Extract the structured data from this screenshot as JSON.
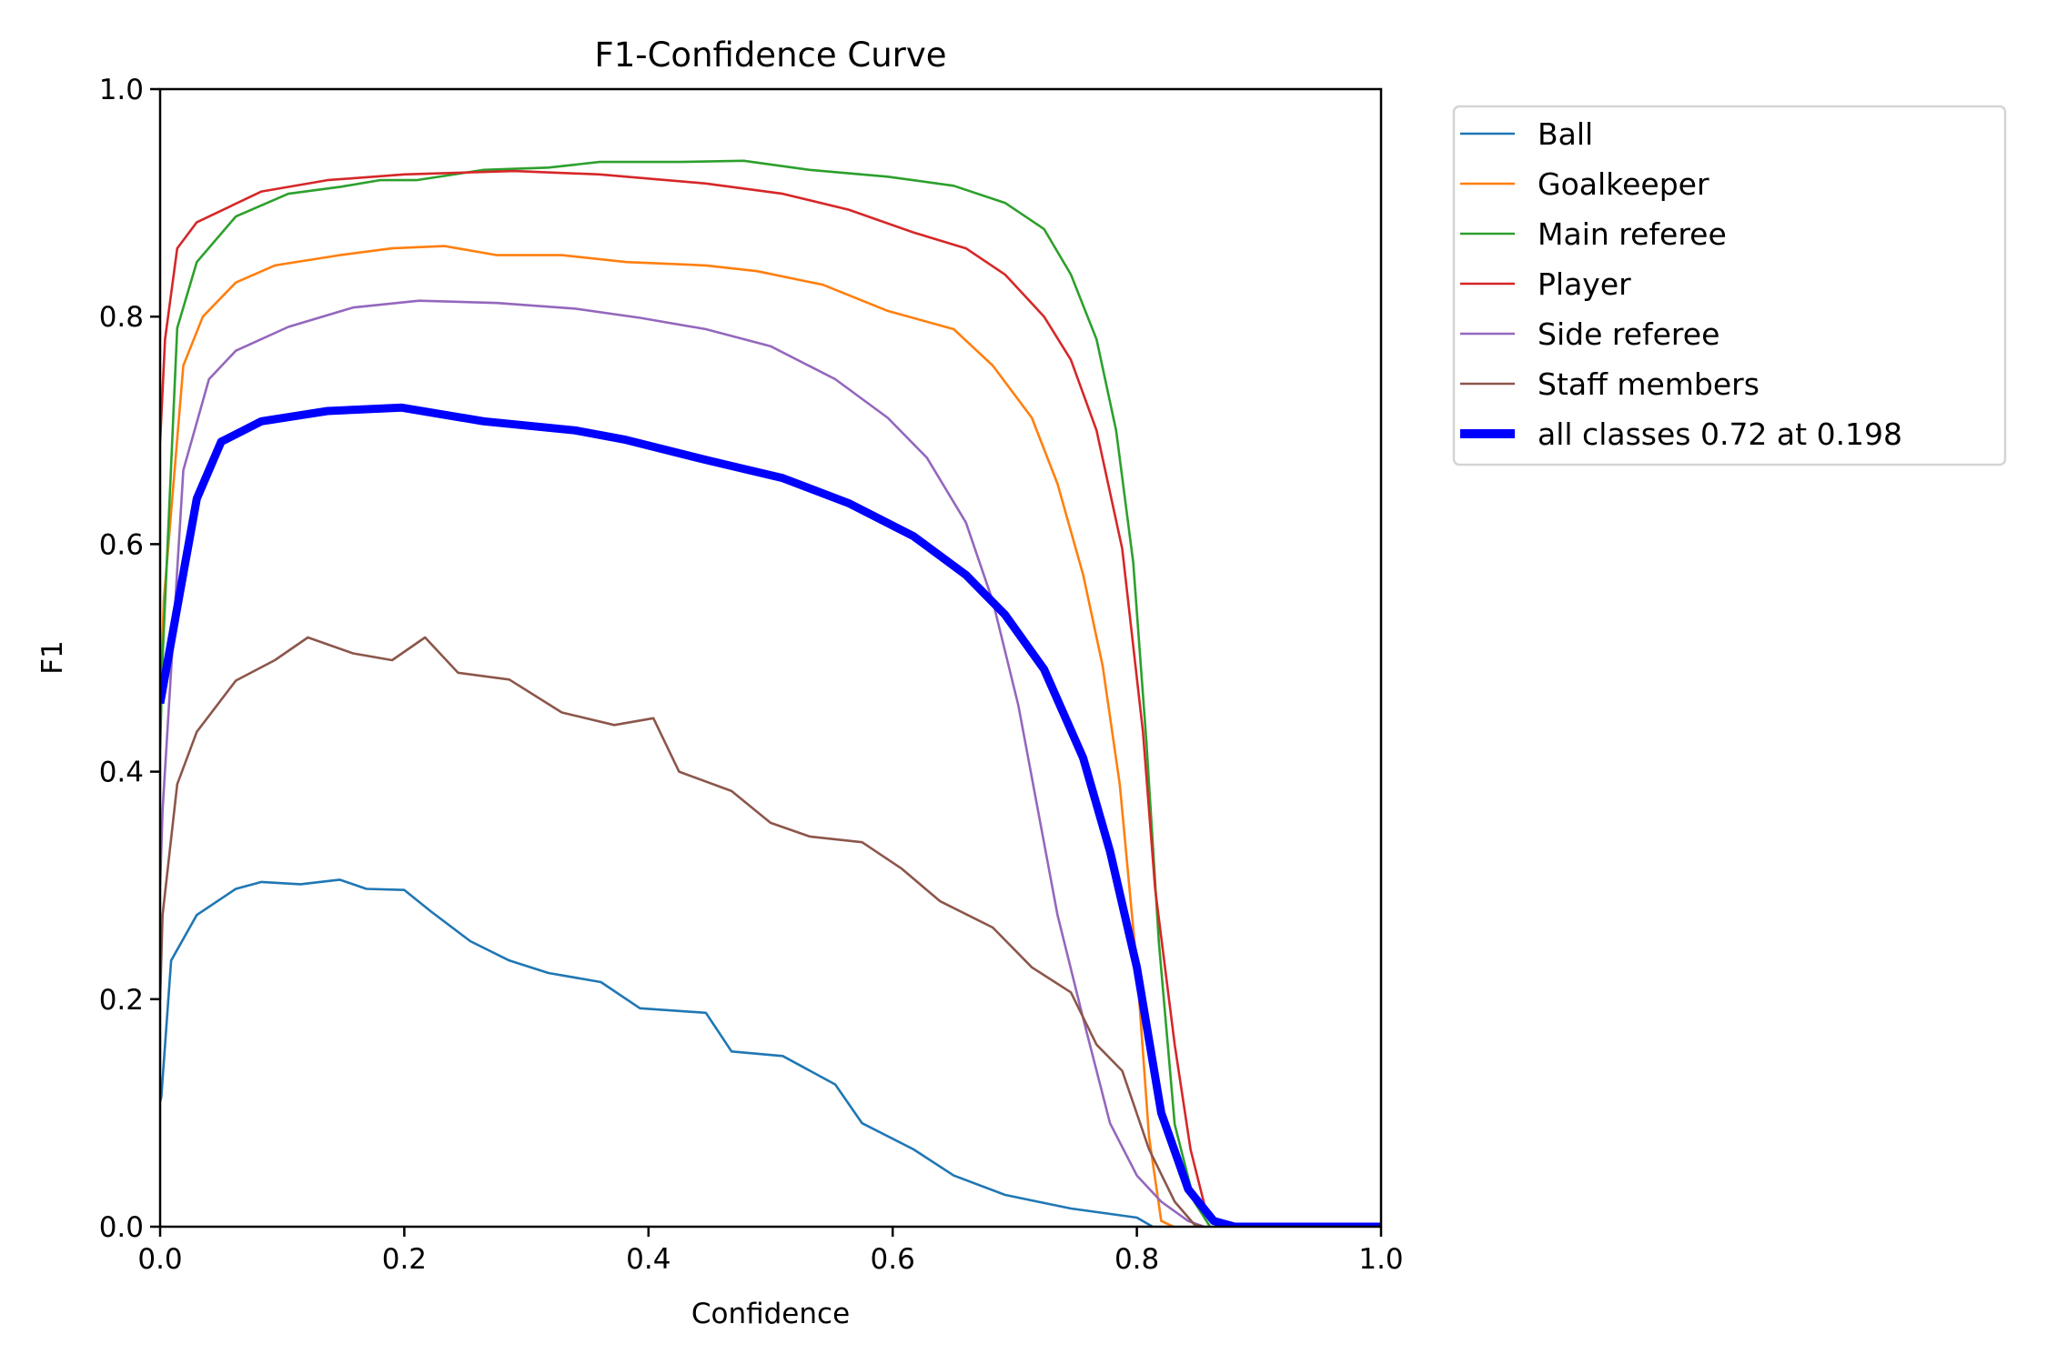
{
  "chart_data": {
    "type": "line",
    "title": "F1-Confidence Curve",
    "xlabel": "Confidence",
    "ylabel": "F1",
    "xlim": [
      0.0,
      1.0
    ],
    "ylim": [
      0.0,
      1.0
    ],
    "xticks": [
      "0.0",
      "0.2",
      "0.4",
      "0.6",
      "0.8",
      "1.0"
    ],
    "yticks": [
      "0.0",
      "0.2",
      "0.4",
      "0.6",
      "0.8",
      "1.0"
    ],
    "grid": false,
    "legend_position": "outside-top-right",
    "series": [
      {
        "name": "Ball",
        "color": "#1f77b4",
        "width": "thin",
        "points": [
          [
            0.0,
            0.11
          ],
          [
            0.001,
            0.114
          ],
          [
            0.009,
            0.234
          ],
          [
            0.03,
            0.274
          ],
          [
            0.062,
            0.297
          ],
          [
            0.083,
            0.303
          ],
          [
            0.115,
            0.301
          ],
          [
            0.147,
            0.305
          ],
          [
            0.169,
            0.297
          ],
          [
            0.2,
            0.296
          ],
          [
            0.222,
            0.277
          ],
          [
            0.254,
            0.251
          ],
          [
            0.286,
            0.234
          ],
          [
            0.318,
            0.223
          ],
          [
            0.361,
            0.215
          ],
          [
            0.393,
            0.192
          ],
          [
            0.447,
            0.188
          ],
          [
            0.468,
            0.154
          ],
          [
            0.51,
            0.15
          ],
          [
            0.553,
            0.125
          ],
          [
            0.575,
            0.091
          ],
          [
            0.617,
            0.068
          ],
          [
            0.65,
            0.045
          ],
          [
            0.692,
            0.028
          ],
          [
            0.746,
            0.016
          ],
          [
            0.8,
            0.008
          ],
          [
            0.813,
            0.0
          ]
        ]
      },
      {
        "name": "Goalkeeper",
        "color": "#ff7f0e",
        "width": "thin",
        "points": [
          [
            0.0,
            0.45
          ],
          [
            0.003,
            0.55
          ],
          [
            0.019,
            0.757
          ],
          [
            0.035,
            0.8
          ],
          [
            0.062,
            0.83
          ],
          [
            0.094,
            0.845
          ],
          [
            0.147,
            0.854
          ],
          [
            0.19,
            0.86
          ],
          [
            0.233,
            0.862
          ],
          [
            0.276,
            0.854
          ],
          [
            0.329,
            0.854
          ],
          [
            0.382,
            0.848
          ],
          [
            0.447,
            0.845
          ],
          [
            0.489,
            0.84
          ],
          [
            0.543,
            0.828
          ],
          [
            0.596,
            0.805
          ],
          [
            0.65,
            0.789
          ],
          [
            0.682,
            0.757
          ],
          [
            0.714,
            0.711
          ],
          [
            0.735,
            0.653
          ],
          [
            0.756,
            0.573
          ],
          [
            0.772,
            0.493
          ],
          [
            0.786,
            0.389
          ],
          [
            0.8,
            0.228
          ],
          [
            0.81,
            0.079
          ],
          [
            0.82,
            0.005
          ],
          [
            0.83,
            0.0
          ]
        ]
      },
      {
        "name": "Main referee",
        "color": "#2ca02c",
        "width": "thin",
        "points": [
          [
            0.0,
            0.42
          ],
          [
            0.002,
            0.5
          ],
          [
            0.014,
            0.79
          ],
          [
            0.03,
            0.848
          ],
          [
            0.062,
            0.888
          ],
          [
            0.105,
            0.908
          ],
          [
            0.147,
            0.914
          ],
          [
            0.18,
            0.92
          ],
          [
            0.21,
            0.92
          ],
          [
            0.265,
            0.929
          ],
          [
            0.318,
            0.931
          ],
          [
            0.36,
            0.936
          ],
          [
            0.425,
            0.936
          ],
          [
            0.478,
            0.937
          ],
          [
            0.532,
            0.929
          ],
          [
            0.596,
            0.923
          ],
          [
            0.65,
            0.915
          ],
          [
            0.692,
            0.9
          ],
          [
            0.724,
            0.877
          ],
          [
            0.746,
            0.837
          ],
          [
            0.767,
            0.78
          ],
          [
            0.783,
            0.7
          ],
          [
            0.797,
            0.584
          ],
          [
            0.808,
            0.424
          ],
          [
            0.818,
            0.25
          ],
          [
            0.831,
            0.09
          ],
          [
            0.847,
            0.022
          ],
          [
            0.86,
            0.0
          ]
        ]
      },
      {
        "name": "Player",
        "color": "#d62728",
        "width": "thin",
        "points": [
          [
            0.0,
            0.69
          ],
          [
            0.004,
            0.78
          ],
          [
            0.014,
            0.86
          ],
          [
            0.03,
            0.883
          ],
          [
            0.083,
            0.91
          ],
          [
            0.137,
            0.92
          ],
          [
            0.2,
            0.925
          ],
          [
            0.29,
            0.928
          ],
          [
            0.36,
            0.925
          ],
          [
            0.447,
            0.917
          ],
          [
            0.51,
            0.908
          ],
          [
            0.564,
            0.894
          ],
          [
            0.617,
            0.874
          ],
          [
            0.66,
            0.86
          ],
          [
            0.692,
            0.837
          ],
          [
            0.724,
            0.8
          ],
          [
            0.746,
            0.762
          ],
          [
            0.767,
            0.7
          ],
          [
            0.788,
            0.596
          ],
          [
            0.805,
            0.435
          ],
          [
            0.815,
            0.297
          ],
          [
            0.831,
            0.16
          ],
          [
            0.844,
            0.068
          ],
          [
            0.858,
            0.008
          ],
          [
            0.87,
            0.0
          ]
        ]
      },
      {
        "name": "Side referee",
        "color": "#9467bd",
        "width": "thin",
        "points": [
          [
            0.0,
            0.3
          ],
          [
            0.002,
            0.366
          ],
          [
            0.019,
            0.665
          ],
          [
            0.04,
            0.745
          ],
          [
            0.062,
            0.77
          ],
          [
            0.105,
            0.791
          ],
          [
            0.158,
            0.808
          ],
          [
            0.212,
            0.814
          ],
          [
            0.276,
            0.812
          ],
          [
            0.34,
            0.807
          ],
          [
            0.393,
            0.799
          ],
          [
            0.447,
            0.789
          ],
          [
            0.5,
            0.774
          ],
          [
            0.553,
            0.745
          ],
          [
            0.596,
            0.711
          ],
          [
            0.628,
            0.676
          ],
          [
            0.66,
            0.619
          ],
          [
            0.682,
            0.55
          ],
          [
            0.703,
            0.458
          ],
          [
            0.719,
            0.366
          ],
          [
            0.735,
            0.274
          ],
          [
            0.756,
            0.183
          ],
          [
            0.778,
            0.091
          ],
          [
            0.8,
            0.045
          ],
          [
            0.82,
            0.022
          ],
          [
            0.842,
            0.005
          ],
          [
            0.855,
            0.0
          ]
        ]
      },
      {
        "name": "Staff members",
        "color": "#8c564b",
        "width": "thin",
        "points": [
          [
            0.0,
            0.2
          ],
          [
            0.002,
            0.274
          ],
          [
            0.014,
            0.389
          ],
          [
            0.03,
            0.435
          ],
          [
            0.062,
            0.48
          ],
          [
            0.094,
            0.498
          ],
          [
            0.121,
            0.518
          ],
          [
            0.158,
            0.504
          ],
          [
            0.19,
            0.498
          ],
          [
            0.217,
            0.518
          ],
          [
            0.244,
            0.487
          ],
          [
            0.286,
            0.481
          ],
          [
            0.329,
            0.452
          ],
          [
            0.372,
            0.441
          ],
          [
            0.404,
            0.447
          ],
          [
            0.425,
            0.4
          ],
          [
            0.468,
            0.383
          ],
          [
            0.5,
            0.355
          ],
          [
            0.532,
            0.343
          ],
          [
            0.575,
            0.338
          ],
          [
            0.607,
            0.315
          ],
          [
            0.639,
            0.286
          ],
          [
            0.682,
            0.263
          ],
          [
            0.714,
            0.228
          ],
          [
            0.746,
            0.206
          ],
          [
            0.767,
            0.16
          ],
          [
            0.788,
            0.137
          ],
          [
            0.81,
            0.068
          ],
          [
            0.831,
            0.022
          ],
          [
            0.847,
            0.002
          ],
          [
            0.855,
            0.0
          ]
        ]
      },
      {
        "name": "all classes 0.72 at 0.198",
        "color": "#0000ff",
        "width": "thick",
        "points": [
          [
            0.0,
            0.46
          ],
          [
            0.01,
            0.52
          ],
          [
            0.02,
            0.58
          ],
          [
            0.03,
            0.64
          ],
          [
            0.05,
            0.69
          ],
          [
            0.083,
            0.708
          ],
          [
            0.137,
            0.717
          ],
          [
            0.198,
            0.72
          ],
          [
            0.265,
            0.708
          ],
          [
            0.34,
            0.7
          ],
          [
            0.38,
            0.692
          ],
          [
            0.447,
            0.674
          ],
          [
            0.51,
            0.658
          ],
          [
            0.564,
            0.636
          ],
          [
            0.617,
            0.607
          ],
          [
            0.66,
            0.573
          ],
          [
            0.692,
            0.538
          ],
          [
            0.724,
            0.49
          ],
          [
            0.756,
            0.412
          ],
          [
            0.778,
            0.33
          ],
          [
            0.8,
            0.228
          ],
          [
            0.82,
            0.1
          ],
          [
            0.842,
            0.033
          ],
          [
            0.863,
            0.005
          ],
          [
            0.88,
            0.0
          ],
          [
            1.0,
            0.0
          ]
        ]
      }
    ]
  }
}
